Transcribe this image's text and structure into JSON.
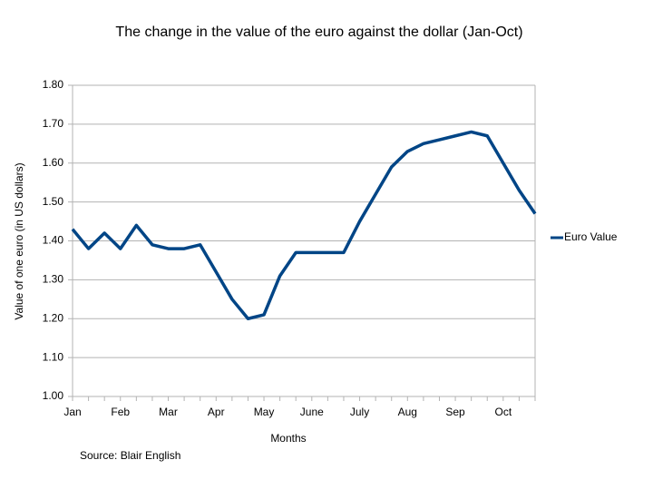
{
  "chart_data": {
    "type": "line",
    "title": "The change in the value of the euro against the dollar (Jan-Oct)",
    "x_label": "Months",
    "y_label": "Value of one euro (in US dollars)",
    "source": "Source: Blair English",
    "categories": [
      "Jan",
      null,
      null,
      "Feb",
      null,
      null,
      "Mar",
      null,
      null,
      "Apr",
      null,
      null,
      "May",
      null,
      null,
      "June",
      null,
      null,
      "July",
      null,
      null,
      "Aug",
      null,
      null,
      "Sep",
      null,
      null,
      "Oct",
      null,
      null
    ],
    "series": [
      {
        "name": "Euro Value",
        "color": "#004586",
        "values": [
          1.43,
          1.38,
          1.42,
          1.38,
          1.44,
          1.39,
          1.38,
          1.38,
          1.39,
          1.32,
          1.25,
          1.2,
          1.21,
          1.31,
          1.37,
          1.37,
          1.37,
          1.37,
          1.45,
          1.52,
          1.59,
          1.63,
          1.65,
          1.66,
          1.67,
          1.68,
          1.67,
          1.6,
          1.53,
          1.47
        ]
      }
    ],
    "ylim": [
      1.0,
      1.8
    ],
    "yticks": [
      {
        "value": 1.0,
        "label": "1.00"
      },
      {
        "value": 1.1,
        "label": "1.10"
      },
      {
        "value": 1.2,
        "label": "1.20"
      },
      {
        "value": 1.3,
        "label": "1.30"
      },
      {
        "value": 1.4,
        "label": "1.40"
      },
      {
        "value": 1.5,
        "label": "1.50"
      },
      {
        "value": 1.6,
        "label": "1.60"
      },
      {
        "value": 1.7,
        "label": "1.70"
      },
      {
        "value": 1.8,
        "label": "1.80"
      }
    ],
    "grid": true,
    "legend": "right"
  }
}
